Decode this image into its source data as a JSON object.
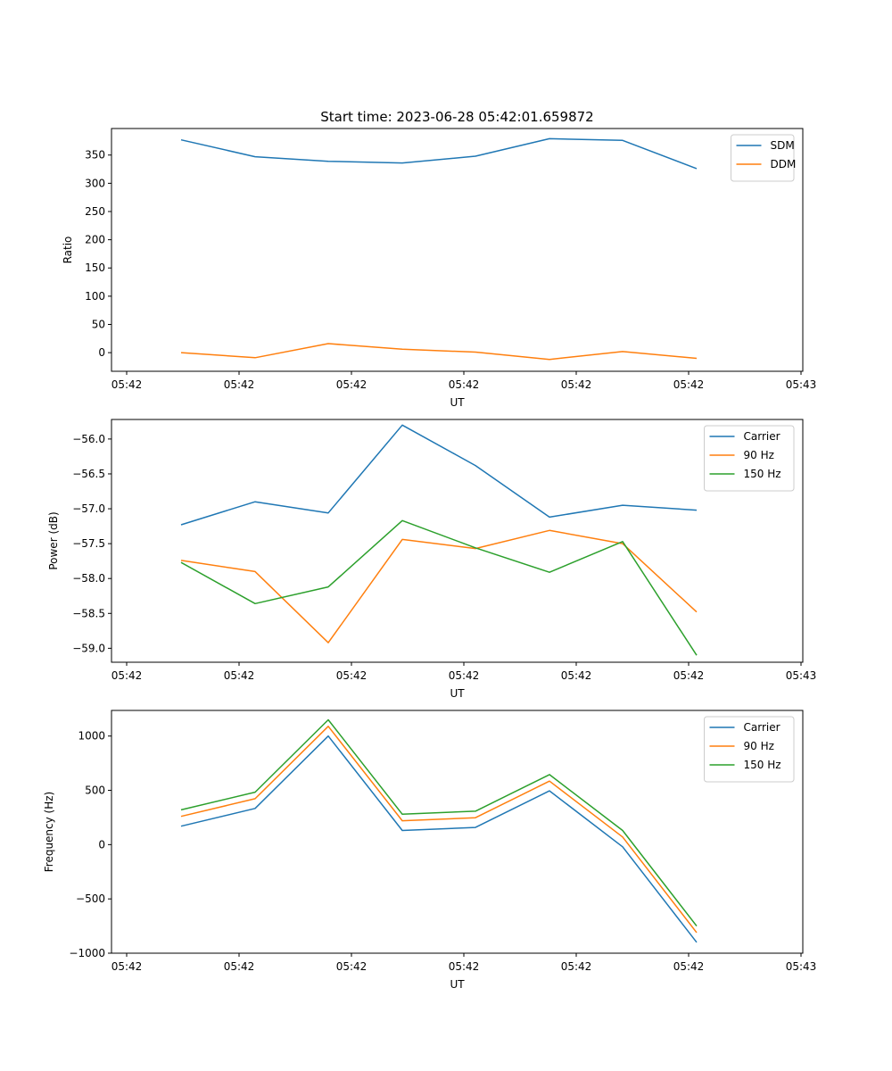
{
  "figure_title": "Start time: 2023-06-28 05:42:01.659872",
  "chart_data": [
    {
      "type": "line",
      "xlabel": "UT",
      "ylabel": "Ratio",
      "x_tick_labels": [
        "05:42",
        "05:42",
        "05:42",
        "05:42",
        "05:42",
        "05:42",
        "05:43"
      ],
      "y_ticks": [
        0,
        50,
        100,
        150,
        200,
        250,
        300,
        350
      ],
      "ylim": [
        -33,
        397
      ],
      "legend_position": "upper-right",
      "series": [
        {
          "name": "SDM",
          "color": "#1f77b4",
          "values": [
            377,
            347,
            339,
            336,
            348,
            379,
            376,
            326
          ]
        },
        {
          "name": "DDM",
          "color": "#ff7f0e",
          "values": [
            0,
            -9,
            16,
            6,
            1,
            -12,
            2,
            -10
          ]
        }
      ]
    },
    {
      "type": "line",
      "xlabel": "UT",
      "ylabel": "Power (dB)",
      "x_tick_labels": [
        "05:42",
        "05:42",
        "05:42",
        "05:42",
        "05:42",
        "05:42",
        "05:43"
      ],
      "y_ticks": [
        -59.0,
        -58.5,
        -58.0,
        -57.5,
        -57.0,
        -56.5,
        -56.0
      ],
      "y_tick_labels": [
        "−59.0",
        "−58.5",
        "−58.0",
        "−57.5",
        "−57.0",
        "−56.5",
        "−56.0"
      ],
      "ylim": [
        -59.2,
        -55.72
      ],
      "legend_position": "upper-right",
      "series": [
        {
          "name": "Carrier",
          "color": "#1f77b4",
          "values": [
            -57.23,
            -56.9,
            -57.06,
            -55.8,
            -56.38,
            -57.12,
            -56.95,
            -57.02
          ]
        },
        {
          "name": "90 Hz",
          "color": "#ff7f0e",
          "values": [
            -57.74,
            -57.9,
            -58.92,
            -57.44,
            -57.57,
            -57.31,
            -57.5,
            -58.48
          ]
        },
        {
          "name": "150 Hz",
          "color": "#2ca02c",
          "values": [
            -57.77,
            -58.36,
            -58.12,
            -57.17,
            -57.56,
            -57.91,
            -57.47,
            -59.1
          ]
        }
      ]
    },
    {
      "type": "line",
      "xlabel": "UT",
      "ylabel": "Frequency (Hz)",
      "x_tick_labels": [
        "05:42",
        "05:42",
        "05:42",
        "05:42",
        "05:42",
        "05:42",
        "05:43"
      ],
      "y_ticks": [
        -1000,
        -500,
        0,
        500,
        1000
      ],
      "y_tick_labels": [
        "−1000",
        "−500",
        "0",
        "500",
        "1000"
      ],
      "ylim": [
        -1000,
        1236
      ],
      "legend_position": "upper-right",
      "series": [
        {
          "name": "Carrier",
          "color": "#1f77b4",
          "values": [
            170,
            333,
            1000,
            130,
            158,
            495,
            -20,
            -900
          ]
        },
        {
          "name": "90 Hz",
          "color": "#ff7f0e",
          "values": [
            260,
            423,
            1090,
            220,
            248,
            585,
            70,
            -810
          ]
        },
        {
          "name": "150 Hz",
          "color": "#2ca02c",
          "values": [
            320,
            483,
            1150,
            280,
            308,
            645,
            130,
            -750
          ]
        }
      ]
    }
  ]
}
